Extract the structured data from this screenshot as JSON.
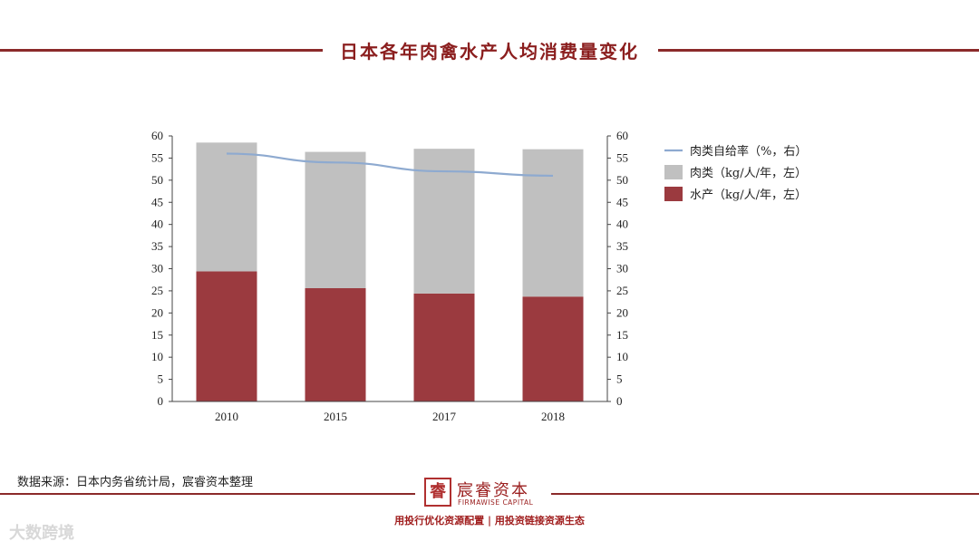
{
  "header": {
    "title": "日本各年肉禽水产人均消费量变化"
  },
  "chart_data": {
    "type": "bar",
    "stacked": true,
    "categories": [
      "2010",
      "2015",
      "2017",
      "2018"
    ],
    "series": [
      {
        "name": "水产（kg/人/年，左）",
        "axis": "left",
        "kind": "bar",
        "color": "#9b3a3f",
        "values": [
          29.4,
          25.6,
          24.4,
          23.7
        ]
      },
      {
        "name": "肉类（kg/人/年，左）",
        "axis": "left",
        "kind": "bar",
        "color": "#c0c0c0",
        "values": [
          29.1,
          30.8,
          32.7,
          33.3
        ]
      },
      {
        "name": "肉类自给率（%，右）",
        "axis": "right",
        "kind": "line",
        "color": "#8eaad0",
        "values": [
          56,
          54,
          52,
          51
        ]
      }
    ],
    "legend_order": [
      {
        "name": "肉类自给率（%，右）",
        "marker": "line",
        "color": "#8eaad0"
      },
      {
        "name": "肉类（kg/人/年，左）",
        "marker": "box",
        "color": "#c0c0c0"
      },
      {
        "name": "水产（kg/人/年，左）",
        "marker": "box",
        "color": "#9b3a3f"
      }
    ],
    "ylim_left": [
      0,
      60
    ],
    "ylim_right": [
      0,
      60
    ],
    "yticks": [
      0,
      5,
      10,
      15,
      20,
      25,
      30,
      35,
      40,
      45,
      50,
      55,
      60
    ],
    "legend_position": "top-right"
  },
  "footer": {
    "source": "数据来源：日本内务省统计局，宸睿资本整理",
    "logo_seal": "睿",
    "logo_cn": "宸睿资本",
    "logo_en": "FIRMAWISE CAPITAL",
    "slogan": "用投行优化资源配置 | 用投资链接资源生态",
    "watermark": "大数跨境"
  }
}
